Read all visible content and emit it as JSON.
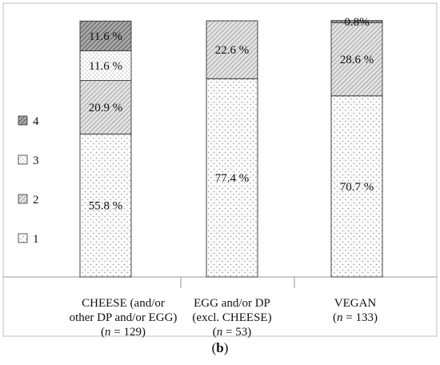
{
  "chart_data": {
    "type": "bar",
    "stacked": true,
    "percent": true,
    "categories": [
      {
        "line1": "CHEESE (and/or",
        "line2": "other DP and/or EGG)",
        "n_prefix": "n",
        "n_rest": " = 129)"
      },
      {
        "line1": "EGG and/or DP",
        "line2": "(excl. CHEESE)",
        "n_prefix": "n",
        "n_rest": " = 53)"
      },
      {
        "line1": "VEGAN",
        "line2": "",
        "n_prefix": "n",
        "n_rest": " = 133)"
      }
    ],
    "series": [
      {
        "name": "1",
        "values": [
          55.8,
          77.4,
          70.7
        ],
        "labels": [
          "55.8 %",
          "77.4 %",
          "70.7 %"
        ],
        "pattern": "dots"
      },
      {
        "name": "2",
        "values": [
          20.9,
          22.6,
          28.6
        ],
        "labels": [
          "20.9 %",
          "22.6 %",
          "28.6 %"
        ],
        "pattern": "diag-light"
      },
      {
        "name": "3",
        "values": [
          11.6,
          0,
          0
        ],
        "labels": [
          "11.6 %",
          "",
          ""
        ],
        "pattern": "fine-dots"
      },
      {
        "name": "4",
        "values": [
          11.6,
          0,
          0.8
        ],
        "labels": [
          "11.6 %",
          "",
          "0.8%"
        ],
        "pattern": "diag-dark"
      }
    ],
    "ylim": [
      0,
      100
    ],
    "legend_position": "left",
    "legend_order": [
      "4",
      "3",
      "2",
      "1"
    ]
  },
  "caption": {
    "open": "(",
    "letter": "b",
    "close": ")"
  }
}
